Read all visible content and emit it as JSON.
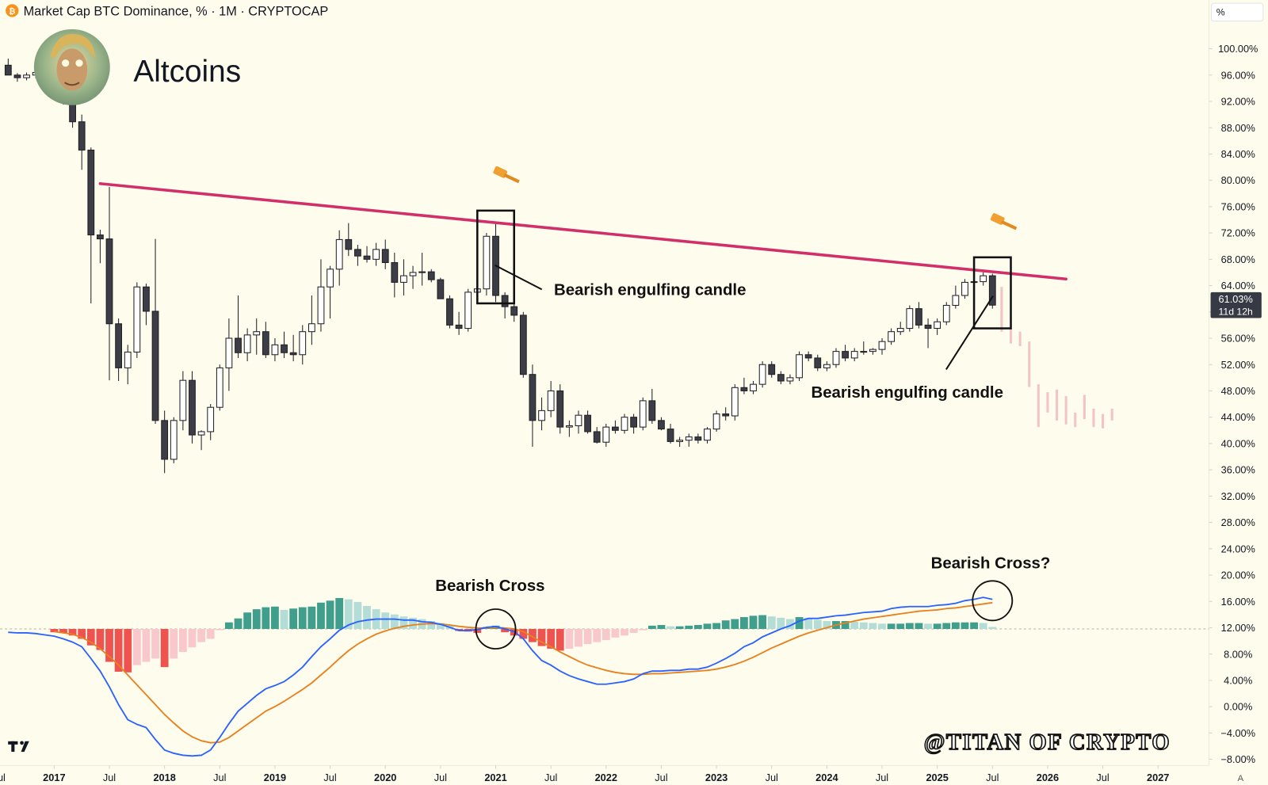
{
  "header": {
    "icon": "₿",
    "title": "Market Cap BTC Dominance, % · 1M · CRYPTOCAP",
    "scale_button": "%",
    "corner_button": "A"
  },
  "chart_data": {
    "type": "candlestick",
    "title": "Altcoins",
    "x": [
      "2016-08",
      "2016-09",
      "2016-10",
      "2016-11",
      "2016-12",
      "2017-01",
      "2017-02",
      "2017-03",
      "2017-04",
      "2017-05",
      "2017-06",
      "2017-07",
      "2017-08",
      "2017-09",
      "2017-10",
      "2017-11",
      "2017-12",
      "2018-01",
      "2018-02",
      "2018-03",
      "2018-04",
      "2018-05",
      "2018-06",
      "2018-07",
      "2018-08",
      "2018-09",
      "2018-10",
      "2018-11",
      "2018-12",
      "2019-01",
      "2019-02",
      "2019-03",
      "2019-04",
      "2019-05",
      "2019-06",
      "2019-07",
      "2019-08",
      "2019-09",
      "2019-10",
      "2019-11",
      "2019-12",
      "2020-01",
      "2020-02",
      "2020-03",
      "2020-04",
      "2020-05",
      "2020-06",
      "2020-07",
      "2020-08",
      "2020-09",
      "2020-10",
      "2020-11",
      "2020-12",
      "2021-01",
      "2021-02",
      "2021-03",
      "2021-04",
      "2021-05",
      "2021-06",
      "2021-07",
      "2021-08",
      "2021-09",
      "2021-10",
      "2021-11",
      "2021-12",
      "2022-01",
      "2022-02",
      "2022-03",
      "2022-04",
      "2022-05",
      "2022-06",
      "2022-07",
      "2022-08",
      "2022-09",
      "2022-10",
      "2022-11",
      "2022-12",
      "2023-01",
      "2023-02",
      "2023-03",
      "2023-04",
      "2023-05",
      "2023-06",
      "2023-07",
      "2023-08",
      "2023-09",
      "2023-10",
      "2023-11",
      "2023-12",
      "2024-01",
      "2024-02",
      "2024-03",
      "2024-04",
      "2024-05",
      "2024-06",
      "2024-07",
      "2024-08",
      "2024-09",
      "2024-10",
      "2024-11",
      "2024-12",
      "2025-01",
      "2025-02",
      "2025-03",
      "2025-04",
      "2025-05",
      "2025-06",
      "2025-07"
    ],
    "ohlc": [
      [
        97.5,
        98.5,
        96,
        96
      ],
      [
        96,
        96.3,
        95,
        95.6
      ],
      [
        95.6,
        96.4,
        95.2,
        96
      ],
      [
        96,
        96.8,
        95.5,
        96.4
      ],
      [
        96.4,
        97,
        96,
        96.7
      ],
      [
        96.7,
        97,
        94.5,
        95.5
      ],
      [
        95.5,
        96,
        91.5,
        92
      ],
      [
        92,
        92.5,
        88,
        88.9
      ],
      [
        88.9,
        90,
        81.6,
        84.6
      ],
      [
        84.6,
        85,
        61.3,
        71.7
      ],
      [
        71.7,
        72.5,
        67.4,
        71.1
      ],
      [
        71.1,
        79,
        49.6,
        58.2
      ],
      [
        58.2,
        59,
        49.5,
        51.5
      ],
      [
        51.5,
        55,
        49,
        53.9
      ],
      [
        53.9,
        64.5,
        53,
        63.8
      ],
      [
        63.8,
        64.3,
        58,
        60.1
      ],
      [
        60.1,
        71.1,
        43,
        43.5
      ],
      [
        43.5,
        45,
        35.5,
        37.6
      ],
      [
        37.6,
        44,
        37,
        43.5
      ],
      [
        43.5,
        51,
        42,
        49.6
      ],
      [
        49.6,
        51,
        40,
        41.3
      ],
      [
        41.3,
        42,
        39,
        41.8
      ],
      [
        41.8,
        46,
        40.5,
        45.5
      ],
      [
        45.5,
        52,
        45,
        51.5
      ],
      [
        51.5,
        59,
        48,
        56
      ],
      [
        56,
        62.5,
        53,
        53.8
      ],
      [
        53.8,
        57.5,
        52.5,
        56.5
      ],
      [
        56.5,
        59,
        53.5,
        57
      ],
      [
        57,
        58.5,
        53,
        53.5
      ],
      [
        53.5,
        56,
        52.5,
        55
      ],
      [
        55,
        57,
        53,
        53.8
      ],
      [
        53.8,
        56.5,
        52.5,
        53.5
      ],
      [
        53.5,
        58,
        52,
        57
      ],
      [
        57,
        62.5,
        55,
        58.2
      ],
      [
        58.2,
        68,
        57,
        63.8
      ],
      [
        63.8,
        67,
        59,
        66.5
      ],
      [
        66.5,
        72.4,
        64,
        71
      ],
      [
        71,
        73.5,
        68.5,
        69.5
      ],
      [
        69.5,
        70.2,
        67,
        68.5
      ],
      [
        68.5,
        70,
        67.5,
        68
      ],
      [
        68,
        70.5,
        67,
        69.5
      ],
      [
        69.5,
        71,
        66.5,
        67.5
      ],
      [
        67.5,
        69,
        62.2,
        64.5
      ],
      [
        64.5,
        68,
        62.5,
        65.5
      ],
      [
        65.5,
        67,
        63.5,
        66
      ],
      [
        66,
        69,
        64,
        66.1
      ],
      [
        66.1,
        66.5,
        64.5,
        64.9
      ],
      [
        64.9,
        65.2,
        62,
        62
      ],
      [
        62,
        62.5,
        57.5,
        58
      ],
      [
        58,
        60,
        56.5,
        57.5
      ],
      [
        57.5,
        63.5,
        57,
        63
      ],
      [
        63,
        64,
        62,
        63.5
      ],
      [
        63.5,
        72,
        62.5,
        71.5
      ],
      [
        71.5,
        73.6,
        61.5,
        62.5
      ],
      [
        62.5,
        63,
        59,
        60.8
      ],
      [
        60.8,
        62,
        58.5,
        59.5
      ],
      [
        59.5,
        60,
        50,
        50.5
      ],
      [
        50.5,
        52,
        39.5,
        43.5
      ],
      [
        43.5,
        47,
        42,
        45
      ],
      [
        45,
        49.5,
        44,
        48
      ],
      [
        48,
        49,
        41.5,
        42.5
      ],
      [
        42.5,
        43.5,
        41,
        42.7
      ],
      [
        42.7,
        45,
        41.5,
        44.3
      ],
      [
        44.3,
        45,
        41.5,
        41.8
      ],
      [
        41.8,
        42.5,
        40,
        40.2
      ],
      [
        40.2,
        43,
        39.5,
        42.5
      ],
      [
        42.5,
        43.5,
        41.5,
        42
      ],
      [
        42,
        44.5,
        41.5,
        44
      ],
      [
        44,
        44.5,
        41.5,
        42.5
      ],
      [
        42.5,
        47,
        42,
        46.5
      ],
      [
        46.5,
        48.3,
        43,
        43.5
      ],
      [
        43.5,
        44,
        42,
        42.2
      ],
      [
        42.2,
        43,
        40,
        40.3
      ],
      [
        40.3,
        41,
        39.5,
        40.5
      ],
      [
        40.5,
        41.5,
        39.5,
        41
      ],
      [
        41,
        41.5,
        40,
        40.5
      ],
      [
        40.5,
        42.5,
        40,
        42.2
      ],
      [
        42.2,
        45,
        41.8,
        44.5
      ],
      [
        44.5,
        45.5,
        43.5,
        44.2
      ],
      [
        44.2,
        49,
        43.5,
        48.5
      ],
      [
        48.5,
        50,
        47.5,
        48
      ],
      [
        48,
        49.5,
        47.5,
        49
      ],
      [
        49,
        52.5,
        48.5,
        52
      ],
      [
        52,
        52.5,
        50,
        50.5
      ],
      [
        50.5,
        51,
        49,
        49.5
      ],
      [
        49.5,
        50.5,
        49,
        50
      ],
      [
        50,
        54,
        49.5,
        53.5
      ],
      [
        53.5,
        54,
        52.5,
        53
      ],
      [
        53,
        53.5,
        51,
        51.5
      ],
      [
        51.5,
        52.5,
        51,
        52
      ],
      [
        52,
        54.5,
        51.5,
        54
      ],
      [
        54,
        55,
        52.5,
        53
      ],
      [
        53,
        54.5,
        52.5,
        54
      ],
      [
        54,
        55.5,
        53.5,
        54
      ],
      [
        54,
        54.5,
        53.5,
        54.3
      ],
      [
        54.3,
        56,
        53.5,
        55.5
      ],
      [
        55.5,
        57.5,
        55,
        57
      ],
      [
        57,
        58.5,
        56.5,
        57.5
      ],
      [
        57.5,
        61,
        57,
        60.5
      ],
      [
        60.5,
        61.5,
        57.5,
        58
      ],
      [
        58,
        59,
        54.5,
        57.5
      ],
      [
        57.5,
        59,
        56.5,
        58.5
      ],
      [
        58.5,
        61.5,
        58,
        61
      ],
      [
        61,
        64,
        60.5,
        62.5
      ],
      [
        62.5,
        65,
        62,
        64.5
      ],
      [
        64.5,
        65,
        64,
        64.6
      ],
      [
        64.6,
        66,
        64,
        65.5
      ],
      [
        65.5,
        65.8,
        60.5,
        61.03
      ]
    ],
    "up_color": "#ffffff",
    "down_color": "#3d3d47",
    "wick_color": "#1e1e24",
    "last_price_label": "61.03%",
    "countdown": "11d 12h",
    "projection": {
      "x": [
        "2025-08",
        "2025-09",
        "2025-10",
        "2025-11",
        "2025-12",
        "2026-01",
        "2026-02",
        "2026-03",
        "2026-04",
        "2026-05",
        "2026-06",
        "2026-07",
        "2026-08"
      ],
      "high": [
        63.8,
        57.6,
        57,
        55.5,
        49,
        47.8,
        48.2,
        47.2,
        44.7,
        47.4,
        45.3,
        44.5,
        45.3
      ],
      "low": [
        57,
        55.2,
        54.8,
        48.6,
        42.5,
        44.7,
        43.5,
        42.9,
        42.5,
        43.7,
        42.5,
        42.3,
        43.5
      ],
      "color": "#f2c4c4"
    },
    "trendline": {
      "x": [
        "2017-06",
        "2026-03"
      ],
      "values": [
        79.5,
        65
      ],
      "color": "#d12f6a"
    },
    "boxes": [
      {
        "x": [
          "2020-11",
          "2021-03"
        ],
        "values": [
          61.3,
          75.4
        ]
      },
      {
        "x": [
          "2025-05",
          "2025-09"
        ],
        "values": [
          57.5,
          68.3
        ]
      }
    ],
    "annotations": [
      {
        "text": "Bearish engulfing candle"
      },
      {
        "text": "Bearish engulfing candle"
      },
      {
        "text": "Bearish Cross"
      },
      {
        "text": "Bearish Cross?"
      }
    ],
    "watermark": "@TITAN OF CRYPTO",
    "xlim": [
      "2016-07",
      "2027-07"
    ],
    "xticks": [
      {
        "value": "2016-07",
        "label": "Jul"
      },
      {
        "value": "2017-01",
        "label": "2017"
      },
      {
        "value": "2017-07",
        "label": "Jul"
      },
      {
        "value": "2018-01",
        "label": "2018"
      },
      {
        "value": "2018-07",
        "label": "Jul"
      },
      {
        "value": "2019-01",
        "label": "2019"
      },
      {
        "value": "2019-07",
        "label": "Jul"
      },
      {
        "value": "2020-01",
        "label": "2020"
      },
      {
        "value": "2020-07",
        "label": "Jul"
      },
      {
        "value": "2021-01",
        "label": "2021"
      },
      {
        "value": "2021-07",
        "label": "Jul"
      },
      {
        "value": "2022-01",
        "label": "2022"
      },
      {
        "value": "2022-07",
        "label": "Jul"
      },
      {
        "value": "2023-01",
        "label": "2023"
      },
      {
        "value": "2023-07",
        "label": "Jul"
      },
      {
        "value": "2024-01",
        "label": "2024"
      },
      {
        "value": "2024-07",
        "label": "Jul"
      },
      {
        "value": "2025-01",
        "label": "2025"
      },
      {
        "value": "2025-07",
        "label": "Jul"
      },
      {
        "value": "2026-01",
        "label": "2026"
      },
      {
        "value": "2026-07",
        "label": "Jul"
      },
      {
        "value": "2027-01",
        "label": "2027"
      }
    ],
    "ylim": [
      -8.7,
      107.4
    ],
    "yticks": [
      {
        "value": 100,
        "label": "100.00%"
      },
      {
        "value": 96,
        "label": "96.00%"
      },
      {
        "value": 92,
        "label": "92.00%"
      },
      {
        "value": 88,
        "label": "88.00%"
      },
      {
        "value": 84,
        "label": "84.00%"
      },
      {
        "value": 80,
        "label": "80.00%"
      },
      {
        "value": 76,
        "label": "76.00%"
      },
      {
        "value": 72,
        "label": "72.00%"
      },
      {
        "value": 68,
        "label": "68.00%"
      },
      {
        "value": 64,
        "label": "64.00%"
      },
      {
        "value": 60,
        "label": "60.00%"
      },
      {
        "value": 56,
        "label": "56.00%"
      },
      {
        "value": 52,
        "label": "52.00%"
      },
      {
        "value": 48,
        "label": "48.00%"
      },
      {
        "value": 44,
        "label": "44.00%"
      },
      {
        "value": 40,
        "label": "40.00%"
      },
      {
        "value": 36,
        "label": "36.00%"
      },
      {
        "value": 32,
        "label": "32.00%"
      },
      {
        "value": 28,
        "label": "28.00%"
      },
      {
        "value": 24,
        "label": "24.00%"
      },
      {
        "value": 20,
        "label": "20.00%"
      },
      {
        "value": 16,
        "label": "16.00%"
      },
      {
        "value": 12,
        "label": "12.00%"
      },
      {
        "value": 8,
        "label": "8.00%"
      },
      {
        "value": 4,
        "label": "4.00%"
      },
      {
        "value": 0,
        "label": "0.00%"
      },
      {
        "value": -4,
        "label": "−4.00%"
      },
      {
        "value": -8,
        "label": "−8.00%"
      }
    ],
    "macd": {
      "ylim": [
        -20,
        6
      ],
      "macd_color": "#2962ff",
      "signal_color": "#e8801e",
      "hist_colors": [
        "#3f9e8c",
        "#b3ddd6",
        "#ef5350",
        "#f8c8cc"
      ],
      "values": [
        -0.5,
        -0.6,
        -0.6,
        -0.7,
        -0.9,
        -1.1,
        -1.5,
        -2,
        -2.7,
        -4.5,
        -6.4,
        -8.8,
        -11.5,
        -13.8,
        -14.5,
        -15,
        -16.8,
        -18.4,
        -18.9,
        -19.2,
        -19.3,
        -19.2,
        -18.4,
        -16.5,
        -14.4,
        -12.5,
        -11.3,
        -10.1,
        -9.1,
        -8.6,
        -8,
        -7,
        -5.8,
        -4.2,
        -2.7,
        -1.5,
        -0.2,
        0.6,
        1.1,
        1.35,
        1.5,
        1.5,
        1.5,
        1.35,
        1.35,
        1.1,
        1,
        0.7,
        0.25,
        -0.25,
        -0.25,
        -0.1,
        0.25,
        0.37,
        0,
        -0.4,
        -1.5,
        -3.3,
        -4.8,
        -5.5,
        -6.4,
        -7.1,
        -7.6,
        -8,
        -8.4,
        -8.4,
        -8.2,
        -8,
        -7.6,
        -6.8,
        -6.4,
        -6.4,
        -6.3,
        -6.3,
        -6.1,
        -6.1,
        -5.8,
        -5.2,
        -4.5,
        -3.7,
        -2.7,
        -2.1,
        -1.2,
        -0.6,
        0,
        0.5,
        1.2,
        1.6,
        1.6,
        1.8,
        2,
        2.1,
        2.3,
        2.5,
        2.6,
        2.7,
        3.1,
        3.3,
        3.4,
        3.4,
        3.4,
        3.6,
        3.7,
        3.9,
        4.3,
        4.5,
        4.8,
        4.5
      ],
      "signal": [
        null,
        null,
        null,
        null,
        null,
        -0.4,
        -0.6,
        -0.8,
        -1.3,
        -2,
        -3,
        -4.2,
        -5.5,
        -7,
        -8.5,
        -10,
        -11.5,
        -13,
        -14.3,
        -15.5,
        -16.4,
        -17,
        -17.3,
        -17.2,
        -16.5,
        -15.5,
        -14.5,
        -13.5,
        -12.5,
        -11.8,
        -11,
        -10.1,
        -9.2,
        -8.2,
        -7,
        -5.8,
        -4.5,
        -3.3,
        -2.3,
        -1.5,
        -0.8,
        -0.3,
        0.1,
        0.4,
        0.6,
        0.75,
        0.8,
        0.75,
        0.6,
        0.4,
        0.25,
        0.15,
        0.15,
        0.2,
        0.15,
        0,
        -0.4,
        -1.2,
        -2,
        -2.7,
        -3.5,
        -4.2,
        -4.9,
        -5.5,
        -5.9,
        -6.3,
        -6.6,
        -6.8,
        -6.9,
        -6.9,
        -6.8,
        -6.8,
        -6.7,
        -6.6,
        -6.5,
        -6.4,
        -6.3,
        -6.1,
        -5.8,
        -5.4,
        -4.9,
        -4.3,
        -3.6,
        -2.9,
        -2.3,
        -1.7,
        -1.1,
        -0.6,
        -0.2,
        0.2,
        0.6,
        0.9,
        1.2,
        1.5,
        1.7,
        1.9,
        2.1,
        2.3,
        2.5,
        2.7,
        2.8,
        2.9,
        3.1,
        3.2,
        3.4,
        3.6,
        3.8,
        4
      ],
      "histogram": [
        null,
        null,
        null,
        null,
        null,
        -0.5,
        -0.6,
        -1,
        -1.5,
        -2.5,
        -3.2,
        -5,
        -6.5,
        -6.6,
        -5.5,
        -5,
        -4.5,
        -5.8,
        -4.5,
        -3.5,
        -2.8,
        -2,
        -1.5,
        -0.2,
        1,
        1.6,
        2.5,
        3,
        3.3,
        3.4,
        2.9,
        3.1,
        3.3,
        3.4,
        4,
        4.3,
        4.7,
        4.5,
        4.1,
        3.5,
        3,
        2.5,
        2.2,
        1.9,
        1.7,
        1.5,
        1.2,
        0.9,
        0.5,
        -0.3,
        -0.4,
        -0.6,
        0.3,
        0.5,
        -0.5,
        -1,
        -1.5,
        -2,
        -2.6,
        -3,
        -3.3,
        -3,
        -2.7,
        -2.3,
        -2,
        -1.7,
        -1.3,
        -1,
        -0.6,
        -0.2,
        0.5,
        0.6,
        0.4,
        0.4,
        0.5,
        0.6,
        0.8,
        0.9,
        1.3,
        1.5,
        1.8,
        2,
        2.1,
        1.9,
        1.7,
        1.5,
        1.8,
        1.7,
        1.4,
        1.2,
        1.2,
        1.2,
        1.1,
        1,
        0.9,
        0.8,
        0.8,
        0.8,
        0.9,
        0.9,
        0.8,
        0.8,
        0.9,
        1,
        1,
        1,
        0.9,
        0.3
      ],
      "circles": [
        {
          "x": "2021-01",
          "value": 0
        },
        {
          "x": "2025-07",
          "value": 4.3
        }
      ]
    }
  }
}
